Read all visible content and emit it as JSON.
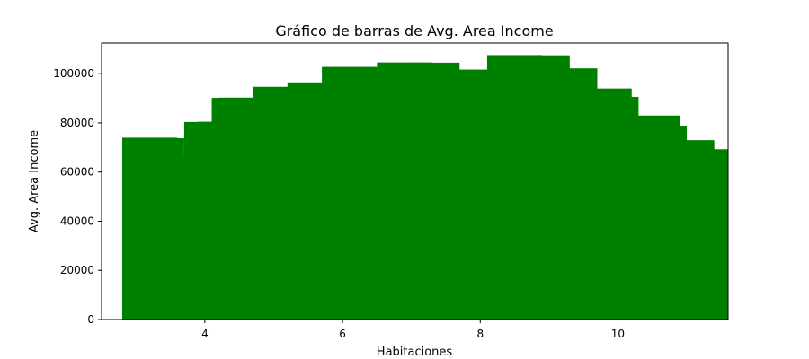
{
  "chart_data": {
    "type": "bar",
    "title": "Gráfico de barras de Avg. Area Income",
    "xlabel": "Habitaciones",
    "ylabel": "Avg. Area Income",
    "xlim": [
      2.5,
      11.6
    ],
    "ylim": [
      0,
      112500
    ],
    "xticks": [
      4,
      6,
      8,
      10
    ],
    "yticks": [
      0,
      20000,
      40000,
      60000,
      80000,
      100000
    ],
    "bar_width": 0.8,
    "bar_color": "#008000",
    "grid": false,
    "legend": "none",
    "bars": [
      {
        "x": 3.2,
        "y": 74000
      },
      {
        "x": 3.3,
        "y": 73800
      },
      {
        "x": 4.0,
        "y": 66700
      },
      {
        "x": 4.1,
        "y": 80400
      },
      {
        "x": 4.3,
        "y": 80500
      },
      {
        "x": 4.5,
        "y": 90200
      },
      {
        "x": 4.6,
        "y": 90300
      },
      {
        "x": 5.1,
        "y": 94700
      },
      {
        "x": 5.6,
        "y": 96500
      },
      {
        "x": 6.1,
        "y": 102800
      },
      {
        "x": 6.5,
        "y": 96800
      },
      {
        "x": 6.6,
        "y": 97400
      },
      {
        "x": 6.65,
        "y": 98200
      },
      {
        "x": 6.7,
        "y": 100600
      },
      {
        "x": 6.9,
        "y": 104600
      },
      {
        "x": 7.3,
        "y": 104500
      },
      {
        "x": 7.9,
        "y": 101700
      },
      {
        "x": 8.2,
        "y": 98000
      },
      {
        "x": 8.3,
        "y": 97000
      },
      {
        "x": 8.5,
        "y": 107600
      },
      {
        "x": 8.9,
        "y": 107500
      },
      {
        "x": 9.3,
        "y": 102200
      },
      {
        "x": 9.8,
        "y": 94000
      },
      {
        "x": 9.9,
        "y": 90600
      },
      {
        "x": 10.5,
        "y": 83000
      },
      {
        "x": 10.6,
        "y": 78900
      },
      {
        "x": 11.0,
        "y": 73000
      },
      {
        "x": 11.1,
        "y": 69200
      },
      {
        "x": 11.2,
        "y": 69300
      }
    ]
  }
}
